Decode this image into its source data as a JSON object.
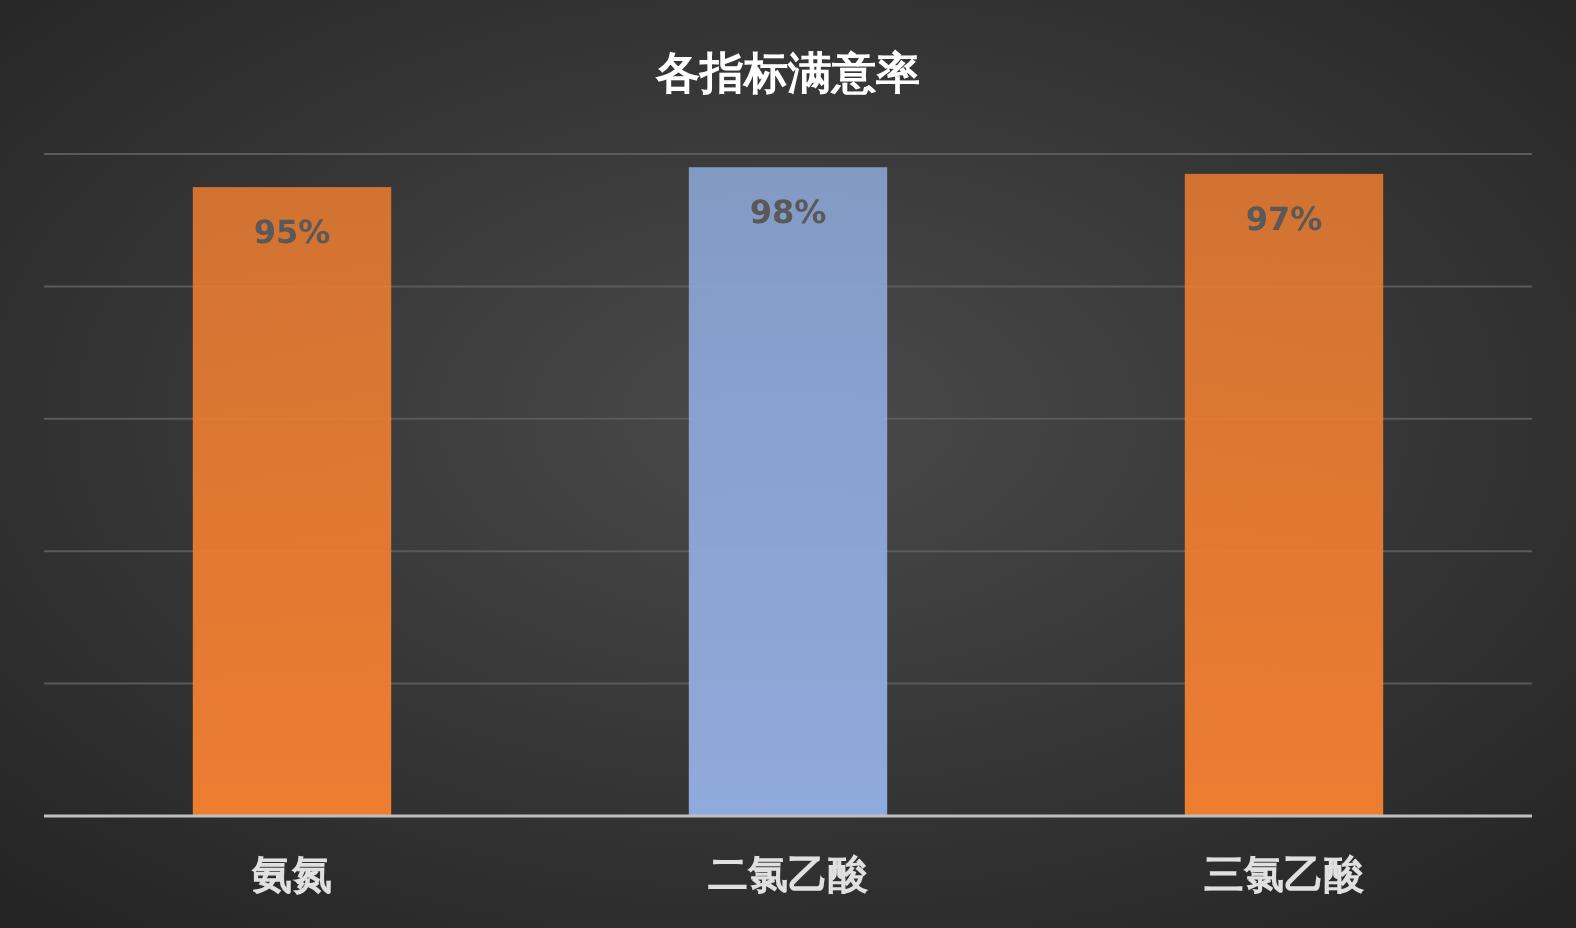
{
  "chart_data": {
    "type": "bar",
    "title": "各指标满意率",
    "categories": [
      "氨氮",
      "二氯乙酸",
      "三氯乙酸"
    ],
    "values": [
      95,
      98,
      97
    ],
    "colors": [
      "#ed7d31",
      "#8faadc",
      "#ed7d31"
    ],
    "value_labels": [
      "95%",
      "98%",
      "97%"
    ],
    "ylim": [
      0,
      100
    ],
    "yticks": [
      {
        "value": 0,
        "label": null
      },
      {
        "value": 20,
        "label": null
      },
      {
        "value": 40,
        "label": null
      },
      {
        "value": 60,
        "label": null
      },
      {
        "value": 80,
        "label": null
      },
      {
        "value": 100,
        "label": null
      }
    ],
    "grid": "y"
  }
}
